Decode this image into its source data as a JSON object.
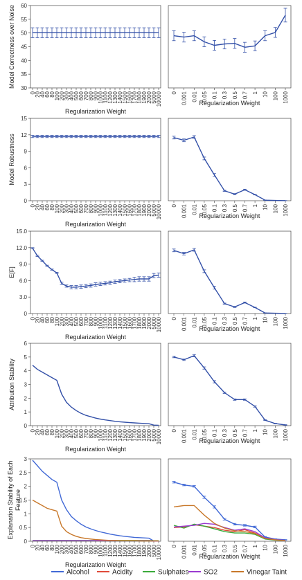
{
  "colors": {
    "Alcohol": "#4169d6",
    "Acidity": "#e04a3a",
    "Sulphates": "#3aaa3a",
    "SO2": "#9a3ad0",
    "Vinegar Taint": "#c8782a",
    "main": "#3350a8"
  },
  "legend": {
    "position": "bottom",
    "items": [
      "Alcohol",
      "Acidity",
      "Sulphates",
      "SO2",
      "Vinegar Taint"
    ]
  },
  "left_xticks": [
    "0",
    "20",
    "40",
    "60",
    "80",
    "100",
    "200",
    "300",
    "400",
    "500",
    "600",
    "700",
    "800",
    "900",
    "1000",
    "1100",
    "1200",
    "1300",
    "1400",
    "1500",
    "1600",
    "1700",
    "1800",
    "1900",
    "2000",
    "5000",
    "10000"
  ],
  "right_xticks": [
    "0",
    "0.001",
    "0.01",
    "0.05",
    "0.1",
    "0.3",
    "0.5",
    "0.7",
    "1",
    "10",
    "100",
    "1000"
  ],
  "chart_data": [
    {
      "type": "line",
      "panel": "left",
      "row": 0,
      "xlabel": "Regularization Weight",
      "ylabel": "Model Correctness over Noise",
      "ylim": [
        30,
        60
      ],
      "yticks": [
        "30",
        "35",
        "40",
        "45",
        "50",
        "55",
        "60"
      ],
      "series": [
        {
          "values": [
            50.1,
            50.1,
            50.1,
            50.1,
            50.1,
            50.1,
            50.1,
            50.1,
            50.1,
            50.1,
            50.1,
            50.1,
            50.1,
            50.1,
            50.1,
            50.1,
            50.1,
            50.1,
            50.1,
            50.1,
            50.1,
            50.1,
            50.1,
            50.1,
            50.1,
            50.1,
            50.1
          ],
          "errors": [
            1.8
          ]
        }
      ]
    },
    {
      "type": "line",
      "panel": "right",
      "row": 0,
      "xlabel": "Regularization Weight",
      "ylabel": "",
      "ylim": [
        30,
        60
      ],
      "series": [
        {
          "values": [
            49,
            48.5,
            49,
            46.8,
            45.5,
            46,
            46.2,
            44.8,
            45.3,
            49,
            50.2,
            56.5
          ],
          "errors": [
            1.8,
            1.8,
            1.8,
            1.8,
            1.8,
            1.8,
            1.8,
            1.8,
            1.8,
            1.8,
            1.8,
            2.5
          ]
        }
      ]
    },
    {
      "type": "line",
      "panel": "left",
      "row": 1,
      "xlabel": "Regularization Weight",
      "ylabel": "Model Robustness",
      "ylim": [
        0,
        15
      ],
      "yticks": [
        "0",
        "3",
        "6",
        "9",
        "12",
        "15"
      ],
      "series": [
        {
          "values": [
            11.7,
            11.7,
            11.7,
            11.7,
            11.7,
            11.7,
            11.7,
            11.7,
            11.7,
            11.7,
            11.7,
            11.7,
            11.7,
            11.7,
            11.7,
            11.7,
            11.7,
            11.7,
            11.7,
            11.7,
            11.7,
            11.7,
            11.7,
            11.7,
            11.7,
            11.7,
            11.7
          ],
          "errors": [
            0.2
          ]
        }
      ]
    },
    {
      "type": "line",
      "panel": "right",
      "row": 1,
      "xlabel": "Regularization Weight",
      "ylabel": "",
      "ylim": [
        0,
        15
      ],
      "series": [
        {
          "values": [
            11.5,
            11,
            11.6,
            7.7,
            4.7,
            1.8,
            1.2,
            2,
            1.1,
            0.1,
            0.05,
            0.02
          ],
          "errors": [
            0.25,
            0.25,
            0.25,
            0.25,
            0.25,
            0.1,
            0.1,
            0.1,
            0.05,
            0.02,
            0.01,
            0.01
          ]
        }
      ]
    },
    {
      "type": "line",
      "panel": "left",
      "row": 2,
      "xlabel": "Regularization Weight",
      "ylabel": "E[F]",
      "ylim": [
        0,
        15
      ],
      "yticks": [
        "0",
        "3.0",
        "6.0",
        "9.0",
        "12.0",
        "15.0"
      ],
      "series": [
        {
          "values": [
            11.9,
            10.5,
            9.6,
            8.7,
            8.0,
            7.4,
            5.5,
            5.0,
            4.8,
            4.8,
            4.9,
            5.0,
            5.1,
            5.3,
            5.4,
            5.5,
            5.6,
            5.8,
            5.9,
            6.0,
            6.1,
            6.2,
            6.3,
            6.3,
            6.3,
            6.9,
            7.0
          ],
          "errors": [
            0.1,
            0.1,
            0.1,
            0.1,
            0.1,
            0.1,
            0.2,
            0.2,
            0.3,
            0.3,
            0.3,
            0.3,
            0.3,
            0.3,
            0.3,
            0.3,
            0.3,
            0.3,
            0.3,
            0.3,
            0.3,
            0.4,
            0.4,
            0.4,
            0.4,
            0.4,
            0.4
          ]
        }
      ]
    },
    {
      "type": "line",
      "panel": "right",
      "row": 2,
      "xlabel": "Regularization Weight",
      "ylabel": "",
      "ylim": [
        0,
        15
      ],
      "series": [
        {
          "values": [
            11.5,
            10.9,
            11.6,
            7.7,
            4.7,
            1.8,
            1.2,
            2,
            1.1,
            0.1,
            0.05,
            0.02
          ],
          "errors": [
            0.25,
            0.25,
            0.25,
            0.25,
            0.25,
            0.1,
            0.1,
            0.1,
            0.05,
            0.02,
            0.01,
            0.01
          ]
        }
      ]
    },
    {
      "type": "line",
      "panel": "left",
      "row": 3,
      "xlabel": "Regularization Weight",
      "ylabel": "Attribution Stability",
      "ylim": [
        0,
        6
      ],
      "yticks": [
        "0",
        "1",
        "2",
        "3",
        "4",
        "5",
        "6"
      ],
      "series": [
        {
          "values": [
            4.4,
            4.1,
            3.9,
            3.7,
            3.5,
            3.3,
            2.3,
            1.7,
            1.35,
            1.1,
            0.9,
            0.75,
            0.65,
            0.55,
            0.48,
            0.42,
            0.37,
            0.32,
            0.28,
            0.25,
            0.22,
            0.2,
            0.18,
            0.16,
            0.14,
            0.04,
            0.03
          ]
        }
      ]
    },
    {
      "type": "line",
      "panel": "right",
      "row": 3,
      "xlabel": "Regularization Weight",
      "ylabel": "",
      "ylim": [
        0,
        6
      ],
      "series": [
        {
          "values": [
            5,
            4.8,
            5.1,
            4.2,
            3.2,
            2.4,
            1.9,
            1.9,
            1.4,
            0.4,
            0.15,
            0.05
          ],
          "errors": [
            0.05,
            0.05,
            0.08,
            0.08,
            0.08,
            0.05,
            0.05,
            0.05,
            0.05,
            0.03,
            0.02,
            0.02
          ]
        }
      ]
    },
    {
      "type": "line",
      "panel": "left",
      "row": 4,
      "xlabel": "Regularization Weight",
      "ylabel": "Explanation Stability of Each Feature",
      "ylim": [
        0,
        3
      ],
      "yticks": [
        "0",
        "0.5",
        "1",
        "1.5",
        "2",
        "2.5",
        "3"
      ],
      "series": [
        {
          "name": "Alcohol",
          "values": [
            2.95,
            2.75,
            2.55,
            2.4,
            2.25,
            2.15,
            1.5,
            1.15,
            0.9,
            0.75,
            0.62,
            0.52,
            0.45,
            0.39,
            0.34,
            0.3,
            0.26,
            0.23,
            0.2,
            0.18,
            0.16,
            0.14,
            0.13,
            0.12,
            0.11,
            0.01,
            0.01
          ]
        },
        {
          "name": "Acidity",
          "values": [
            0.02,
            0.02,
            0.02,
            0.02,
            0.02,
            0.02,
            0.02,
            0.02,
            0.02,
            0.02,
            0.02,
            0.02,
            0.02,
            0.02,
            0.02,
            0.02,
            0.02,
            0.02,
            0.02,
            0.02,
            0.02,
            0.02,
            0.02,
            0.02,
            0.02,
            0.01,
            0.01
          ]
        },
        {
          "name": "Sulphates",
          "values": [
            0.03,
            0.03,
            0.03,
            0.03,
            0.03,
            0.03,
            0.03,
            0.03,
            0.03,
            0.03,
            0.03,
            0.03,
            0.03,
            0.03,
            0.03,
            0.03,
            0.03,
            0.03,
            0.03,
            0.03,
            0.03,
            0.03,
            0.03,
            0.03,
            0.03,
            0.02,
            0.02
          ]
        },
        {
          "name": "SO2",
          "values": [
            0.02,
            0.02,
            0.02,
            0.02,
            0.02,
            0.02,
            0.02,
            0.02,
            0.02,
            0.02,
            0.02,
            0.02,
            0.02,
            0.02,
            0.02,
            0.02,
            0.02,
            0.02,
            0.02,
            0.02,
            0.02,
            0.02,
            0.02,
            0.02,
            0.02,
            0.01,
            0.01
          ]
        },
        {
          "name": "Vinegar Taint",
          "values": [
            1.5,
            1.4,
            1.3,
            1.2,
            1.15,
            1.1,
            0.55,
            0.35,
            0.25,
            0.18,
            0.13,
            0.1,
            0.08,
            0.06,
            0.05,
            0.04,
            0.03,
            0.03,
            0.02,
            0.02,
            0.02,
            0.02,
            0.01,
            0.01,
            0.01,
            0.01,
            0.01
          ]
        }
      ]
    },
    {
      "type": "line",
      "panel": "right",
      "row": 4,
      "xlabel": "Regularization Weight",
      "ylabel": "",
      "ylim": [
        0,
        3
      ],
      "series": [
        {
          "name": "Alcohol",
          "values": [
            2.15,
            2.05,
            2,
            1.6,
            1.25,
            0.8,
            0.62,
            0.58,
            0.52,
            0.15,
            0.08,
            0.05
          ],
          "errors": [
            0.03,
            0.03,
            0.03,
            0.04,
            0.04,
            0.03,
            0.03,
            0.03,
            0.03,
            0.02,
            0.01,
            0.01
          ]
        },
        {
          "name": "Acidity",
          "values": [
            0.5,
            0.52,
            0.6,
            0.55,
            0.5,
            0.4,
            0.35,
            0.42,
            0.3,
            0.1,
            0.05,
            0.03
          ]
        },
        {
          "name": "Sulphates",
          "values": [
            0.58,
            0.48,
            0.62,
            0.55,
            0.45,
            0.35,
            0.3,
            0.3,
            0.25,
            0.08,
            0.04,
            0.02
          ]
        },
        {
          "name": "SO2",
          "values": [
            0.52,
            0.55,
            0.58,
            0.65,
            0.62,
            0.5,
            0.4,
            0.45,
            0.35,
            0.12,
            0.06,
            0.03
          ]
        },
        {
          "name": "Vinegar Taint",
          "values": [
            1.25,
            1.3,
            1.3,
            0.95,
            0.65,
            0.48,
            0.38,
            0.35,
            0.28,
            0.1,
            0.05,
            0.02
          ]
        }
      ]
    }
  ]
}
